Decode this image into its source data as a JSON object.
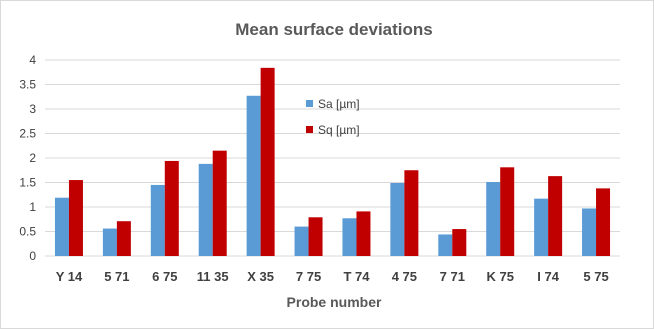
{
  "chart_data": {
    "type": "bar",
    "title": "Mean surface deviations",
    "xlabel": "Probe number",
    "ylabel": "",
    "ylim": [
      0,
      4
    ],
    "yticks": [
      "0",
      "0.5",
      "1",
      "1.5",
      "2",
      "2.5",
      "3",
      "3.5",
      "4"
    ],
    "grid": true,
    "legend_position": "top-center",
    "categories": [
      "Y 14",
      "5 71",
      "6 75",
      "11 35",
      "X 35",
      "7 75",
      "T 74",
      "4 75",
      "7 71",
      "K 75",
      "I 74",
      "5 75"
    ],
    "series": [
      {
        "name": "Sa [µm]",
        "color": "#5b9bd5",
        "values": [
          1.19,
          0.56,
          1.45,
          1.88,
          3.27,
          0.6,
          0.77,
          1.49,
          0.44,
          1.51,
          1.17,
          0.97
        ]
      },
      {
        "name": "Sq [µm]",
        "color": "#c00000",
        "values": [
          1.55,
          0.71,
          1.94,
          2.15,
          3.84,
          0.79,
          0.91,
          1.75,
          0.55,
          1.81,
          1.63,
          1.38
        ]
      }
    ]
  }
}
